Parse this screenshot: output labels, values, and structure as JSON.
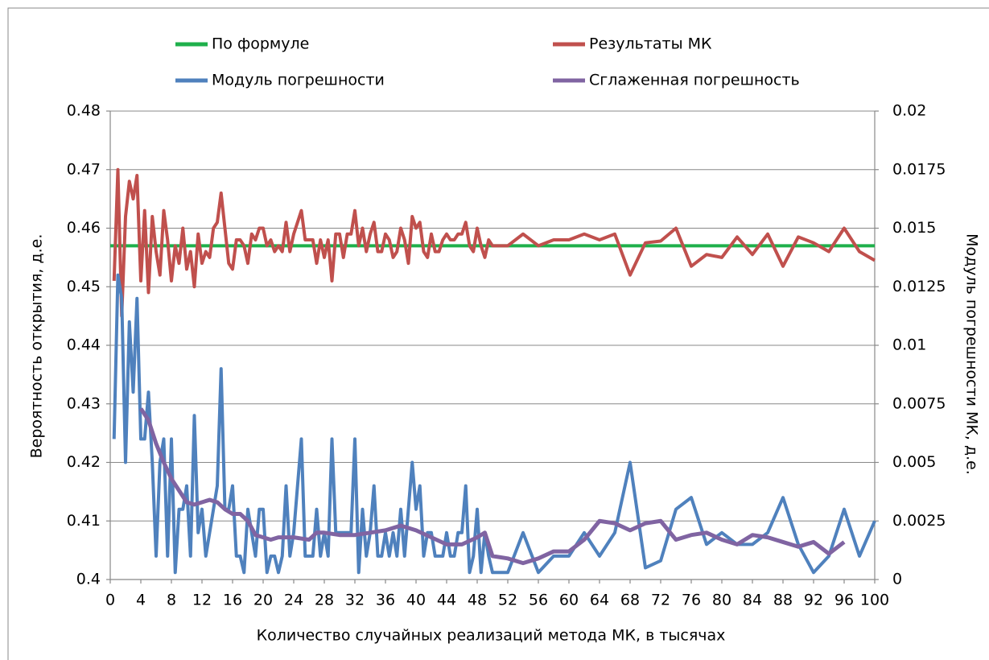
{
  "chart_data": {
    "type": "line",
    "x_label": "Количество случайных реализаций метода МК, в тысячах",
    "y_label": "Вероятность открытия, д.е.",
    "y2_label": "Модуль погрешности МК, д.е.",
    "xlim": [
      0,
      100
    ],
    "xticks": [
      0,
      4,
      8,
      12,
      16,
      20,
      24,
      28,
      32,
      36,
      40,
      44,
      48,
      52,
      56,
      60,
      64,
      68,
      72,
      76,
      80,
      84,
      88,
      92,
      96,
      100
    ],
    "ylim": [
      0.4,
      0.48
    ],
    "yticks": [
      0.4,
      0.41,
      0.42,
      0.43,
      0.44,
      0.45,
      0.46,
      0.47,
      0.48
    ],
    "y2lim": [
      0,
      0.02
    ],
    "y2ticks": [
      0,
      0.0025,
      0.005,
      0.0075,
      0.01,
      0.0125,
      0.015,
      0.0175,
      0.02
    ],
    "grid": true,
    "legend": "top",
    "series": [
      {
        "name": "По формуле",
        "color": "#1fb04b",
        "x": [
          0,
          100
        ],
        "values": [
          0.457,
          0.457
        ]
      },
      {
        "name": "Результаты МК",
        "color": "#c0504d",
        "x": [
          0.5,
          1,
          1.5,
          2,
          2.5,
          3,
          3.5,
          4,
          4.5,
          5,
          5.5,
          6,
          6.5,
          7,
          7.5,
          8,
          8.5,
          9,
          9.5,
          10,
          10.5,
          11,
          11.5,
          12,
          12.5,
          13,
          13.5,
          14,
          14.5,
          15,
          15.5,
          16,
          16.5,
          17,
          17.5,
          18,
          18.5,
          19,
          19.5,
          20,
          20.5,
          21,
          21.5,
          22,
          22.5,
          23,
          23.5,
          24,
          24.5,
          25,
          25.5,
          26,
          26.5,
          27,
          27.5,
          28,
          28.5,
          29,
          29.5,
          30,
          30.5,
          31,
          31.5,
          32,
          32.5,
          33,
          33.5,
          34,
          34.5,
          35,
          35.5,
          36,
          36.5,
          37,
          37.5,
          38,
          38.5,
          39,
          39.5,
          40,
          40.5,
          41,
          41.5,
          42,
          42.5,
          43,
          43.5,
          44,
          44.5,
          45,
          45.5,
          46,
          46.5,
          47,
          47.5,
          48,
          48.5,
          49,
          49.5,
          50,
          52,
          54,
          56,
          58,
          60,
          62,
          64,
          66,
          68,
          70,
          72,
          74,
          76,
          78,
          80,
          82,
          84,
          86,
          88,
          90,
          92,
          94,
          96,
          98,
          100
        ],
        "values": [
          0.451,
          0.47,
          0.445,
          0.462,
          0.468,
          0.465,
          0.469,
          0.451,
          0.463,
          0.449,
          0.462,
          0.456,
          0.452,
          0.463,
          0.458,
          0.451,
          0.457,
          0.454,
          0.46,
          0.453,
          0.456,
          0.45,
          0.459,
          0.454,
          0.456,
          0.455,
          0.46,
          0.461,
          0.466,
          0.46,
          0.454,
          0.453,
          0.458,
          0.458,
          0.457,
          0.454,
          0.459,
          0.458,
          0.46,
          0.46,
          0.457,
          0.458,
          0.456,
          0.457,
          0.456,
          0.461,
          0.456,
          0.459,
          0.461,
          0.463,
          0.458,
          0.458,
          0.458,
          0.454,
          0.458,
          0.455,
          0.458,
          0.451,
          0.459,
          0.459,
          0.455,
          0.459,
          0.459,
          0.463,
          0.457,
          0.46,
          0.456,
          0.459,
          0.461,
          0.456,
          0.456,
          0.459,
          0.458,
          0.455,
          0.456,
          0.46,
          0.458,
          0.454,
          0.462,
          0.46,
          0.461,
          0.456,
          0.455,
          0.459,
          0.456,
          0.456,
          0.458,
          0.459,
          0.458,
          0.458,
          0.459,
          0.459,
          0.461,
          0.457,
          0.456,
          0.46,
          0.457,
          0.455,
          0.458,
          0.457,
          0.457,
          0.459,
          0.457,
          0.458,
          0.458,
          0.459,
          0.458,
          0.459,
          0.452,
          0.4575,
          0.4578,
          0.46,
          0.4535,
          0.4555,
          0.455,
          0.4585,
          0.4555,
          0.459,
          0.4535,
          0.4585,
          0.4575,
          0.456,
          0.46,
          0.456,
          0.4545
        ]
      },
      {
        "name": "Модуль погрешности",
        "color": "#4f81bd",
        "axis": "y2",
        "x": [
          0.5,
          1,
          1.5,
          2,
          2.5,
          3,
          3.5,
          4,
          4.5,
          5,
          5.5,
          6,
          6.5,
          7,
          7.5,
          8,
          8.5,
          9,
          9.5,
          10,
          10.5,
          11,
          11.5,
          12,
          12.5,
          13,
          13.5,
          14,
          14.5,
          15,
          15.5,
          16,
          16.5,
          17,
          17.5,
          18,
          18.5,
          19,
          19.5,
          20,
          20.5,
          21,
          21.5,
          22,
          22.5,
          23,
          23.5,
          24,
          24.5,
          25,
          25.5,
          26,
          26.5,
          27,
          27.5,
          28,
          28.5,
          29,
          29.5,
          30,
          30.5,
          31,
          31.5,
          32,
          32.5,
          33,
          33.5,
          34,
          34.5,
          35,
          35.5,
          36,
          36.5,
          37,
          37.5,
          38,
          38.5,
          39,
          39.5,
          40,
          40.5,
          41,
          41.5,
          42,
          42.5,
          43,
          43.5,
          44,
          44.5,
          45,
          45.5,
          46,
          46.5,
          47,
          47.5,
          48,
          48.5,
          49,
          49.5,
          50,
          52,
          54,
          56,
          58,
          60,
          62,
          64,
          66,
          68,
          70,
          72,
          74,
          76,
          78,
          80,
          82,
          84,
          86,
          88,
          90,
          92,
          94,
          96,
          98,
          100
        ],
        "values": [
          0.006,
          0.013,
          0.012,
          0.005,
          0.011,
          0.008,
          0.012,
          0.006,
          0.006,
          0.008,
          0.005,
          0.001,
          0.005,
          0.006,
          0.001,
          0.006,
          0.0003,
          0.003,
          0.003,
          0.004,
          0.001,
          0.007,
          0.002,
          0.003,
          0.001,
          0.002,
          0.003,
          0.004,
          0.009,
          0.003,
          0.003,
          0.004,
          0.001,
          0.001,
          0.0003,
          0.003,
          0.002,
          0.001,
          0.003,
          0.003,
          0.0003,
          0.001,
          0.001,
          0.0003,
          0.001,
          0.004,
          0.001,
          0.002,
          0.004,
          0.006,
          0.001,
          0.001,
          0.001,
          0.003,
          0.001,
          0.002,
          0.001,
          0.006,
          0.002,
          0.002,
          0.002,
          0.002,
          0.002,
          0.006,
          0.0003,
          0.003,
          0.001,
          0.002,
          0.004,
          0.001,
          0.001,
          0.002,
          0.001,
          0.002,
          0.001,
          0.003,
          0.001,
          0.003,
          0.005,
          0.003,
          0.004,
          0.001,
          0.002,
          0.002,
          0.001,
          0.001,
          0.001,
          0.002,
          0.001,
          0.001,
          0.002,
          0.002,
          0.004,
          0.0003,
          0.001,
          0.003,
          0.0003,
          0.002,
          0.001,
          0.0003,
          0.0003,
          0.002,
          0.0003,
          0.001,
          0.001,
          0.002,
          0.001,
          0.002,
          0.005,
          0.0005,
          0.0008,
          0.003,
          0.0035,
          0.0015,
          0.002,
          0.0015,
          0.0015,
          0.002,
          0.0035,
          0.0015,
          0.0003,
          0.001,
          0.003,
          0.001,
          0.0025
        ]
      },
      {
        "name": "Сглаженная погрешность",
        "color": "#8064a2",
        "axis": "y2",
        "x": [
          4,
          5,
          6,
          7,
          8,
          9,
          10,
          11,
          12,
          13,
          14,
          15,
          16,
          17,
          18,
          19,
          20,
          21,
          22,
          24,
          26,
          27,
          28,
          30,
          32,
          34,
          36,
          38,
          40,
          42,
          44,
          46,
          48,
          49,
          50,
          52,
          54,
          56,
          58,
          60,
          62,
          64,
          66,
          68,
          70,
          72,
          74,
          76,
          78,
          80,
          82,
          84,
          86,
          88,
          90,
          92,
          94,
          96
        ],
        "values": [
          0.0073,
          0.0068,
          0.0058,
          0.005,
          0.0043,
          0.0038,
          0.0033,
          0.0032,
          0.0033,
          0.0034,
          0.0033,
          0.003,
          0.0028,
          0.0028,
          0.0025,
          0.0019,
          0.0018,
          0.0017,
          0.0018,
          0.0018,
          0.0017,
          0.002,
          0.002,
          0.0019,
          0.0019,
          0.002,
          0.0021,
          0.0023,
          0.0021,
          0.0018,
          0.0015,
          0.0015,
          0.0018,
          0.002,
          0.001,
          0.0009,
          0.0007,
          0.0009,
          0.0012,
          0.0012,
          0.0017,
          0.0025,
          0.0024,
          0.0021,
          0.0024,
          0.0025,
          0.0017,
          0.0019,
          0.002,
          0.0017,
          0.0015,
          0.0019,
          0.0018,
          0.0016,
          0.0014,
          0.0016,
          0.0011,
          0.0016
        ]
      }
    ]
  }
}
